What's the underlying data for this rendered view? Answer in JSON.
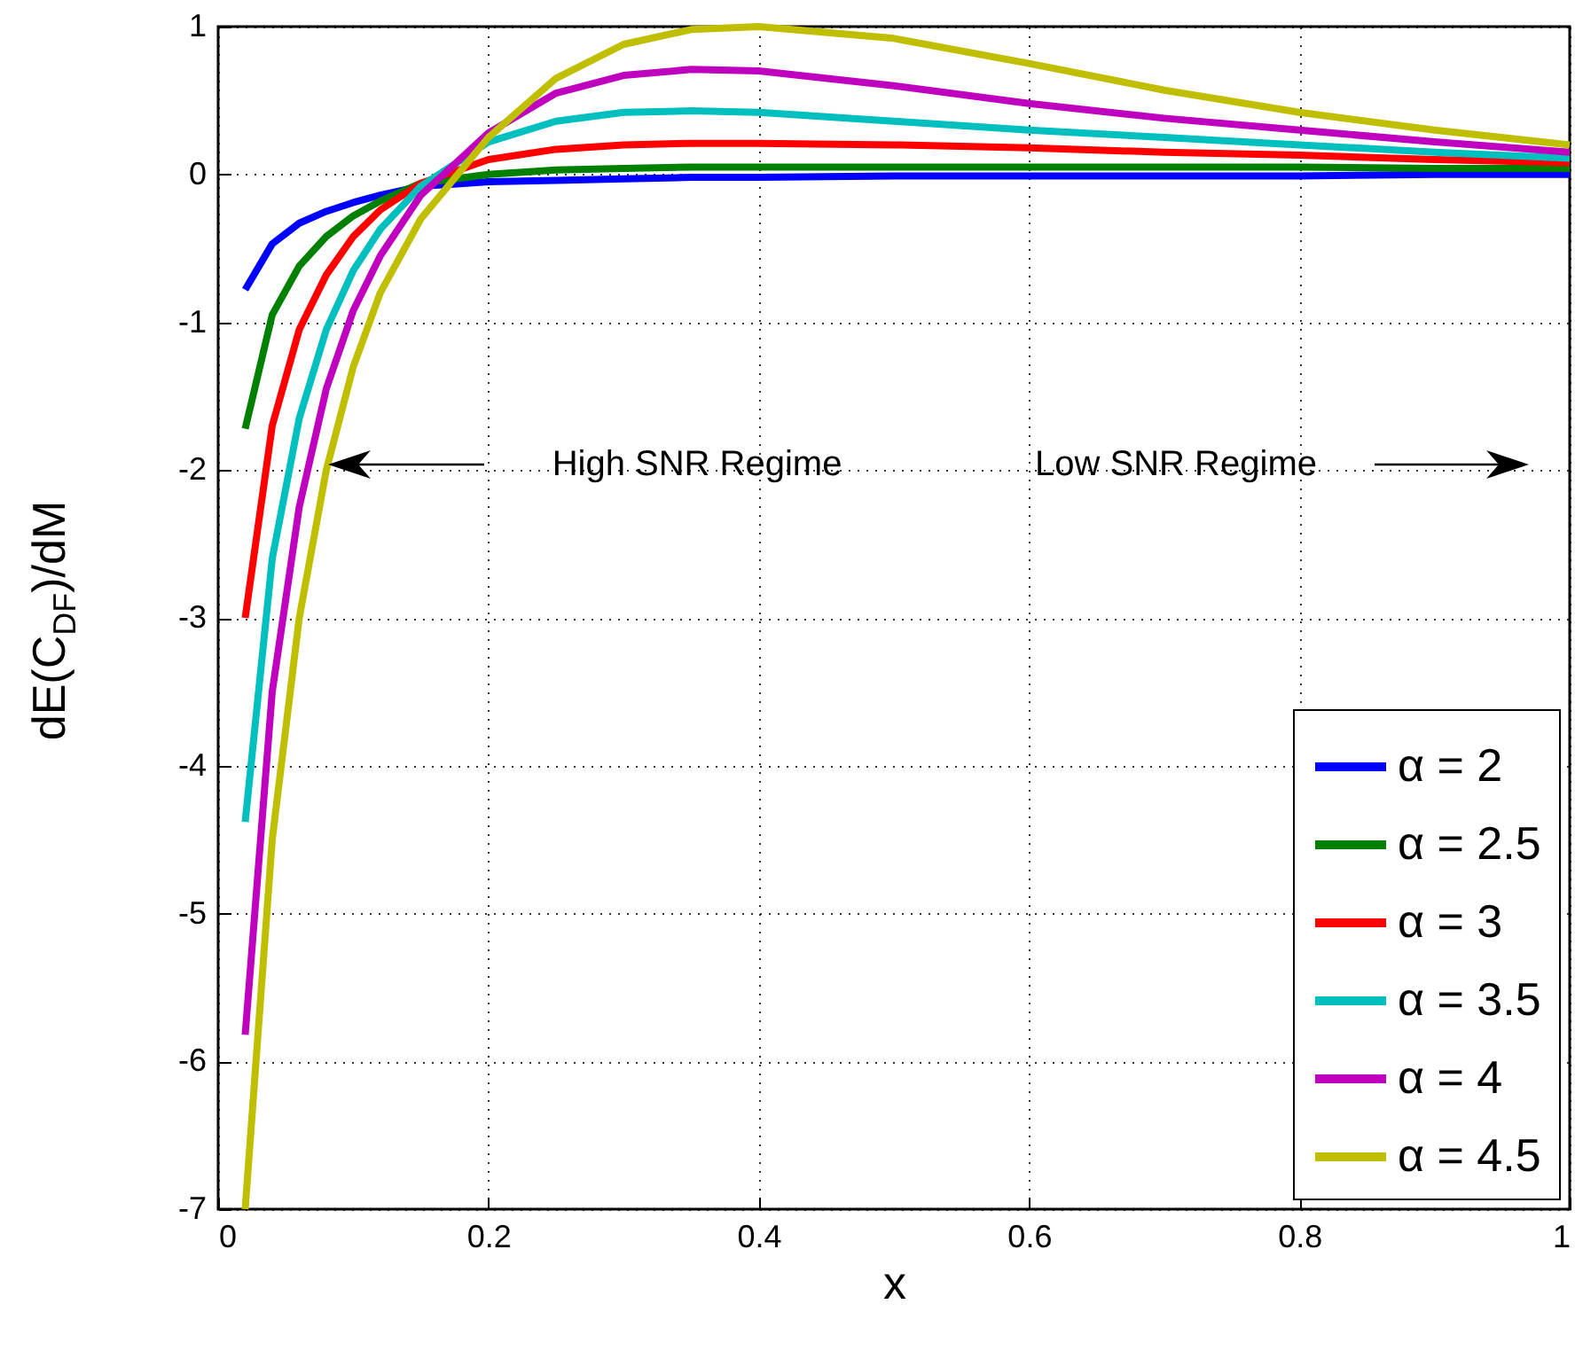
{
  "chart_data": {
    "type": "line",
    "xlabel": "x",
    "ylabel": "dE(C$_{DF}$)/dM",
    "x": [
      0.02,
      0.04,
      0.06,
      0.08,
      0.1,
      0.12,
      0.15,
      0.2,
      0.25,
      0.3,
      0.35,
      0.4,
      0.5,
      0.6,
      0.7,
      0.8,
      0.9,
      1
    ],
    "series": [
      {
        "name": "α = 2",
        "color": "#0000ff",
        "values": [
          -0.78,
          -0.47,
          -0.33,
          -0.25,
          -0.19,
          -0.14,
          -0.08,
          -0.05,
          -0.04,
          -0.03,
          -0.02,
          -0.02,
          -0.01,
          -0.01,
          -0.01,
          -0.01,
          0,
          0
        ]
      },
      {
        "name": "α = 2.5",
        "color": "#008000",
        "values": [
          -1.72,
          -0.95,
          -0.62,
          -0.42,
          -0.28,
          -0.18,
          -0.06,
          0,
          0.03,
          0.04,
          0.05,
          0.05,
          0.05,
          0.05,
          0.05,
          0.05,
          0.04,
          0.04
        ]
      },
      {
        "name": "α = 3",
        "color": "#ff0000",
        "values": [
          -3,
          -1.7,
          -1.05,
          -0.68,
          -0.42,
          -0.24,
          -0.06,
          0.1,
          0.17,
          0.2,
          0.21,
          0.21,
          0.2,
          0.18,
          0.15,
          0.13,
          0.1,
          0.08
        ]
      },
      {
        "name": "α = 3.5",
        "color": "#00bfbf",
        "values": [
          -4.38,
          -2.6,
          -1.65,
          -1.05,
          -0.65,
          -0.37,
          -0.08,
          0.22,
          0.36,
          0.42,
          0.43,
          0.42,
          0.36,
          0.3,
          0.25,
          0.2,
          0.15,
          0.11
        ]
      },
      {
        "name": "α = 4",
        "color": "#bf00bf",
        "values": [
          -5.82,
          -3.5,
          -2.25,
          -1.45,
          -0.92,
          -0.55,
          -0.14,
          0.28,
          0.55,
          0.67,
          0.71,
          0.7,
          0.6,
          0.48,
          0.38,
          0.3,
          0.22,
          0.15
        ]
      },
      {
        "name": "α = 4.5",
        "color": "#bfbf00",
        "values": [
          -7,
          -4.5,
          -3,
          -2,
          -1.3,
          -0.8,
          -0.3,
          0.25,
          0.65,
          0.88,
          0.98,
          1,
          0.92,
          0.75,
          0.57,
          0.42,
          0.3,
          0.2
        ]
      }
    ],
    "xlim": [
      0,
      1
    ],
    "ylim": [
      -7,
      1
    ],
    "xticks": [
      0,
      0.2,
      0.4,
      0.6,
      0.8,
      1
    ],
    "yticks": [
      -7,
      -6,
      -5,
      -4,
      -3,
      -2,
      -1,
      0,
      1
    ],
    "grid": true,
    "legend": "bottom right",
    "annotations": [
      "High SNR Regime",
      "Low SNR Regime"
    ]
  }
}
